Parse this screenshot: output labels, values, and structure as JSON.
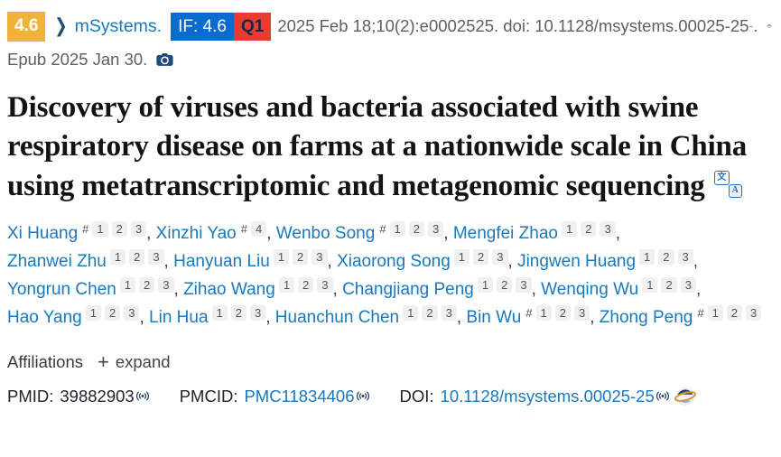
{
  "colors": {
    "link_blue": "#1779be",
    "impact_badge_bg": "#efb33a",
    "if_badge_bg": "#0a6bd0",
    "quartile_badge_bg": "#ea3b31",
    "icon_navy": "#1d3e6e",
    "text_gray": "#5b6066",
    "text_dark": "#212529"
  },
  "header": {
    "impact_badge": "4.6",
    "journal": "mSystems.",
    "if_badge": "IF: 4.6",
    "quartile_badge": "Q1",
    "citation": "2025 Feb 18;10(2):e0002525. doi: 10.1128/msystems.00025-25",
    "citation_suffix": ".",
    "epub": "Epub 2025 Jan 30."
  },
  "title": "Discovery of viruses and bacteria associated with swine respiratory disease on farms at a nationwide scale in China using metatranscriptomic and metagenomic sequencing",
  "authors": [
    {
      "name": "Xi Huang",
      "sups": [
        "#",
        "1",
        "2",
        "3"
      ]
    },
    {
      "name": "Xinzhi Yao",
      "sups": [
        "#",
        "4"
      ]
    },
    {
      "name": "Wenbo Song",
      "sups": [
        "#",
        "1",
        "2",
        "3"
      ]
    },
    {
      "name": "Mengfei Zhao",
      "sups": [
        "1",
        "2",
        "3"
      ]
    },
    {
      "name": "Zhanwei Zhu",
      "sups": [
        "1",
        "2",
        "3"
      ]
    },
    {
      "name": "Hanyuan Liu",
      "sups": [
        "1",
        "2",
        "3"
      ]
    },
    {
      "name": "Xiaorong Song",
      "sups": [
        "1",
        "2",
        "3"
      ]
    },
    {
      "name": "Jingwen Huang",
      "sups": [
        "1",
        "2",
        "3"
      ]
    },
    {
      "name": "Yongrun Chen",
      "sups": [
        "1",
        "2",
        "3"
      ]
    },
    {
      "name": "Zihao Wang",
      "sups": [
        "1",
        "2",
        "3"
      ]
    },
    {
      "name": "Changjiang Peng",
      "sups": [
        "1",
        "2",
        "3"
      ]
    },
    {
      "name": "Wenqing Wu",
      "sups": [
        "1",
        "2",
        "3"
      ]
    },
    {
      "name": "Hao Yang",
      "sups": [
        "1",
        "2",
        "3"
      ]
    },
    {
      "name": "Lin Hua",
      "sups": [
        "1",
        "2",
        "3"
      ]
    },
    {
      "name": "Huanchun Chen",
      "sups": [
        "1",
        "2",
        "3"
      ]
    },
    {
      "name": "Bin Wu",
      "sups": [
        "#",
        "1",
        "2",
        "3"
      ]
    },
    {
      "name": "Zhong Peng",
      "sups": [
        "#",
        "1",
        "2",
        "3"
      ]
    }
  ],
  "author_separator": ", ",
  "affiliations": {
    "label": "Affiliations",
    "expand": "expand"
  },
  "ids": {
    "pmid_label": "PMID:",
    "pmid_value": "39882903",
    "pmcid_label": "PMCID:",
    "pmcid_value": "PMC11834406",
    "doi_label": "DOI:",
    "doi_value": "10.1128/msystems.00025-25"
  },
  "icons": {
    "chevron_right": "❯",
    "plus": "+",
    "translate_source": "文",
    "translate_target": "A",
    "broadcast": "((•))",
    "camera": "camera",
    "globe_extension": "globe"
  }
}
